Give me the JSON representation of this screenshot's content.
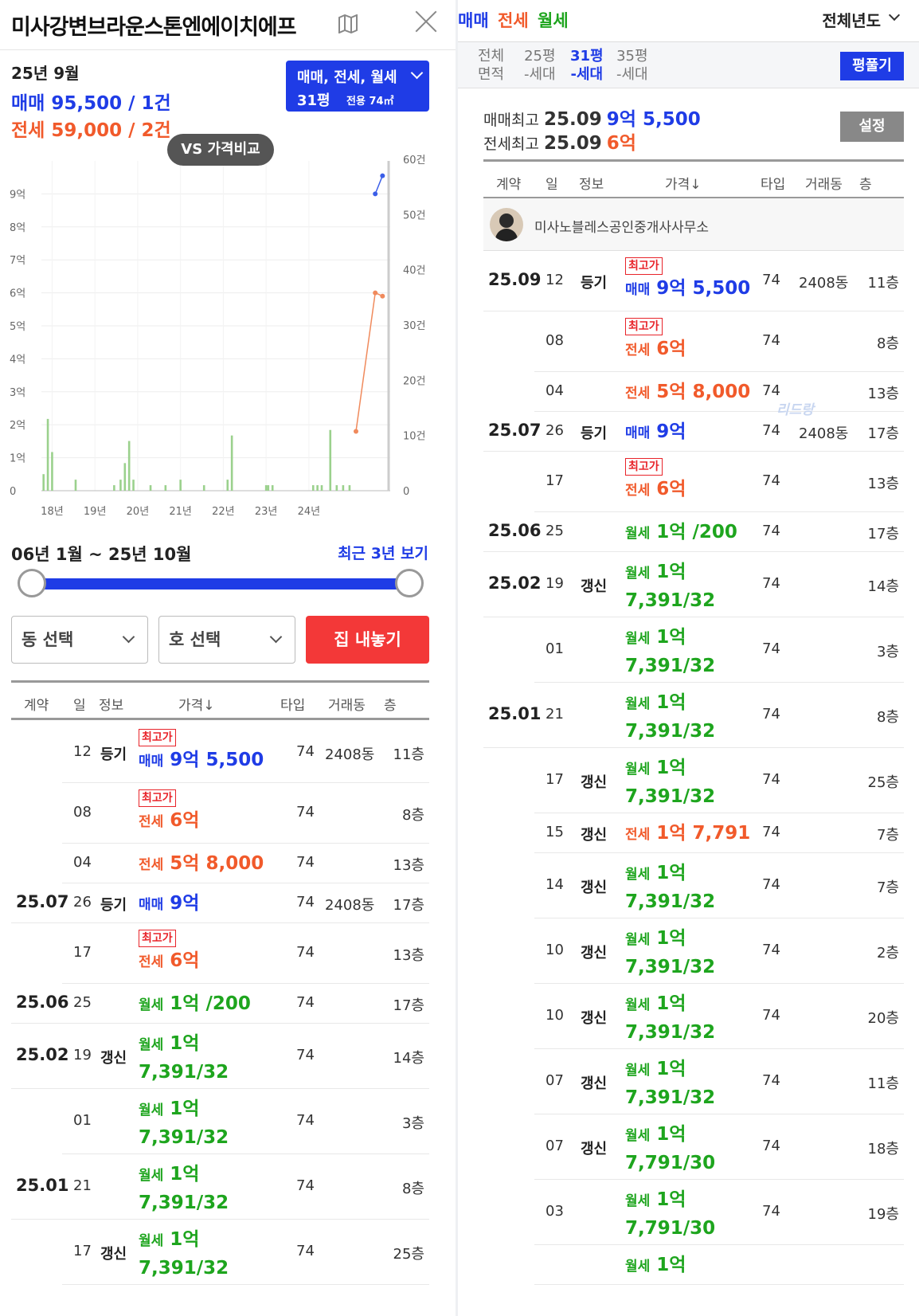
{
  "left": {
    "title": "미사강변브라운스톤엔에이치에프",
    "summary": {
      "month": "25년 9월",
      "sale": "매매 95,500 / 1건",
      "jeonse": "전세 59,000 / 2건"
    },
    "filter": {
      "types": "매매, 전세, 월세",
      "size": "31평",
      "area": "전용 74㎡"
    },
    "vs_button": "VS 가격비교",
    "period": "06년 1월 ~ 25년 10월",
    "recent_link": "최근 3년 보기",
    "dong_select": "동 선택",
    "ho_select": "호 선택",
    "list_button": "집 내놓기"
  },
  "chart_data": {
    "type": "line",
    "y_left_ticks": [
      "0",
      "1억",
      "2억",
      "3억",
      "4억",
      "5억",
      "6억",
      "7억",
      "8억",
      "9억"
    ],
    "y_right_ticks": [
      "0",
      "10건",
      "20건",
      "30건",
      "40건",
      "50건",
      "60건"
    ],
    "x_ticks": [
      "18년",
      "19년",
      "20년",
      "21년",
      "22년",
      "23년",
      "24년"
    ],
    "xlim": [
      2017.75,
      2025.9
    ],
    "ylim_price": [
      0,
      10
    ],
    "ylim_count": [
      0,
      60
    ],
    "series": [
      {
        "type": "line",
        "x": [
          2025.55,
          2025.72
        ],
        "y": [
          9.0,
          9.55
        ],
        "color": "#3a5ee8"
      },
      {
        "type": "line",
        "x": [
          2025.1,
          2025.55,
          2025.72
        ],
        "y": [
          1.8,
          6.0,
          5.9
        ],
        "color": "#f08a5c"
      }
    ],
    "bars": [
      {
        "x": 2017.8,
        "y": 3
      },
      {
        "x": 2017.9,
        "y": 13
      },
      {
        "x": 2018.0,
        "y": 7
      },
      {
        "x": 2018.55,
        "y": 2
      },
      {
        "x": 2019.45,
        "y": 1
      },
      {
        "x": 2019.6,
        "y": 2
      },
      {
        "x": 2019.7,
        "y": 5
      },
      {
        "x": 2019.8,
        "y": 9
      },
      {
        "x": 2019.9,
        "y": 2
      },
      {
        "x": 2020.3,
        "y": 1
      },
      {
        "x": 2020.65,
        "y": 1
      },
      {
        "x": 2021.0,
        "y": 2
      },
      {
        "x": 2021.55,
        "y": 1
      },
      {
        "x": 2022.1,
        "y": 2
      },
      {
        "x": 2022.2,
        "y": 10
      },
      {
        "x": 2023.0,
        "y": 1
      },
      {
        "x": 2023.05,
        "y": 1
      },
      {
        "x": 2023.15,
        "y": 1
      },
      {
        "x": 2024.1,
        "y": 1
      },
      {
        "x": 2024.2,
        "y": 1
      },
      {
        "x": 2024.3,
        "y": 1
      },
      {
        "x": 2024.5,
        "y": 11
      },
      {
        "x": 2024.65,
        "y": 1
      },
      {
        "x": 2024.8,
        "y": 1
      },
      {
        "x": 2024.95,
        "y": 1
      }
    ],
    "bar_color": "#9bd18d"
  },
  "table_header": [
    "계약",
    "일",
    "정보",
    "가격↓",
    "타입",
    "거래동",
    "층"
  ],
  "rows": [
    {
      "month": "",
      "day": "12",
      "info": "등기",
      "badge": "최고가",
      "ptype": "매매",
      "price": "9억 5,500",
      "color": "blue",
      "typ": "74",
      "dong": "2408동",
      "floor": "11층"
    },
    {
      "month": "",
      "day": "08",
      "info": "",
      "badge": "최고가",
      "ptype": "전세",
      "price": "6억",
      "color": "orange",
      "typ": "74",
      "dong": "",
      "floor": "8층"
    },
    {
      "month": "",
      "day": "04",
      "info": "",
      "badge": "",
      "ptype": "전세",
      "price": "5억 8,000",
      "color": "orange",
      "typ": "74",
      "dong": "",
      "floor": "13층"
    },
    {
      "month": "25.07",
      "day": "26",
      "info": "등기",
      "badge": "",
      "ptype": "매매",
      "price": "9억",
      "color": "blue",
      "typ": "74",
      "dong": "2408동",
      "floor": "17층"
    },
    {
      "month": "",
      "day": "17",
      "info": "",
      "badge": "최고가",
      "ptype": "전세",
      "price": "6억",
      "color": "orange",
      "typ": "74",
      "dong": "",
      "floor": "13층"
    },
    {
      "month": "25.06",
      "day": "25",
      "info": "",
      "badge": "",
      "ptype": "월세",
      "price": "1억 /200",
      "color": "green",
      "typ": "74",
      "dong": "",
      "floor": "17층"
    },
    {
      "month": "25.02",
      "day": "19",
      "info": "갱신",
      "badge": "",
      "ptype": "월세",
      "price": "1억",
      "price2": "7,391/32",
      "color": "green",
      "typ": "74",
      "dong": "",
      "floor": "14층"
    },
    {
      "month": "",
      "day": "01",
      "info": "",
      "badge": "",
      "ptype": "월세",
      "price": "1억",
      "price2": "7,391/32",
      "color": "green",
      "typ": "74",
      "dong": "",
      "floor": "3층"
    },
    {
      "month": "25.01",
      "day": "21",
      "info": "",
      "badge": "",
      "ptype": "월세",
      "price": "1억",
      "price2": "7,391/32",
      "color": "green",
      "typ": "74",
      "dong": "",
      "floor": "8층"
    },
    {
      "month": "",
      "day": "17",
      "info": "갱신",
      "badge": "",
      "ptype": "월세",
      "price": "1억",
      "price2": "7,391/32",
      "color": "green",
      "typ": "74",
      "dong": "",
      "floor": "25층"
    }
  ],
  "right": {
    "tabs": [
      "매매",
      "전세",
      "월세"
    ],
    "year_select": "전체년도",
    "areas": [
      {
        "top": "전체",
        "bottom": "면적"
      },
      {
        "top": "25평",
        "bottom": "-세대"
      },
      {
        "top": "31평",
        "bottom": "-세대"
      },
      {
        "top": "35평",
        "bottom": "-세대"
      }
    ],
    "pyeong_button": "평풀기",
    "sale_high_label": "매매최고",
    "sale_high_date": "25.09",
    "sale_high_value": "9억 5,500",
    "jeonse_high_label": "전세최고",
    "jeonse_high_date": "25.09",
    "jeonse_high_value": "6억",
    "settings_button": "설정",
    "agent_name": "미사노블레스공인중개사사무소",
    "watermark": "리드랑"
  },
  "right_rows": [
    {
      "month": "25.09",
      "day": "12",
      "info": "등기",
      "badge": "최고가",
      "ptype": "매매",
      "price": "9억 5,500",
      "color": "blue",
      "typ": "74",
      "dong": "2408동",
      "floor": "11층"
    },
    {
      "month": "",
      "day": "08",
      "info": "",
      "badge": "최고가",
      "ptype": "전세",
      "price": "6억",
      "color": "orange",
      "typ": "74",
      "dong": "",
      "floor": "8층"
    },
    {
      "month": "",
      "day": "04",
      "info": "",
      "badge": "",
      "ptype": "전세",
      "price": "5억 8,000",
      "color": "orange",
      "typ": "74",
      "dong": "",
      "floor": "13층"
    },
    {
      "month": "25.07",
      "day": "26",
      "info": "등기",
      "badge": "",
      "ptype": "매매",
      "price": "9억",
      "color": "blue",
      "typ": "74",
      "dong": "2408동",
      "floor": "17층"
    },
    {
      "month": "",
      "day": "17",
      "info": "",
      "badge": "최고가",
      "ptype": "전세",
      "price": "6억",
      "color": "orange",
      "typ": "74",
      "dong": "",
      "floor": "13층"
    },
    {
      "month": "25.06",
      "day": "25",
      "info": "",
      "badge": "",
      "ptype": "월세",
      "price": "1억 /200",
      "color": "green",
      "typ": "74",
      "dong": "",
      "floor": "17층"
    },
    {
      "month": "25.02",
      "day": "19",
      "info": "갱신",
      "badge": "",
      "ptype": "월세",
      "price": "1억",
      "price2": "7,391/32",
      "color": "green",
      "typ": "74",
      "dong": "",
      "floor": "14층"
    },
    {
      "month": "",
      "day": "01",
      "info": "",
      "badge": "",
      "ptype": "월세",
      "price": "1억",
      "price2": "7,391/32",
      "color": "green",
      "typ": "74",
      "dong": "",
      "floor": "3층"
    },
    {
      "month": "25.01",
      "day": "21",
      "info": "",
      "badge": "",
      "ptype": "월세",
      "price": "1억",
      "price2": "7,391/32",
      "color": "green",
      "typ": "74",
      "dong": "",
      "floor": "8층"
    },
    {
      "month": "",
      "day": "17",
      "info": "갱신",
      "badge": "",
      "ptype": "월세",
      "price": "1억",
      "price2": "7,391/32",
      "color": "green",
      "typ": "74",
      "dong": "",
      "floor": "25층"
    },
    {
      "month": "",
      "day": "15",
      "info": "갱신",
      "badge": "",
      "ptype": "전세",
      "price": "1억 7,791",
      "color": "orange",
      "typ": "74",
      "dong": "",
      "floor": "7층"
    },
    {
      "month": "",
      "day": "14",
      "info": "갱신",
      "badge": "",
      "ptype": "월세",
      "price": "1억",
      "price2": "7,391/32",
      "color": "green",
      "typ": "74",
      "dong": "",
      "floor": "7층"
    },
    {
      "month": "",
      "day": "10",
      "info": "갱신",
      "badge": "",
      "ptype": "월세",
      "price": "1억",
      "price2": "7,391/32",
      "color": "green",
      "typ": "74",
      "dong": "",
      "floor": "2층"
    },
    {
      "month": "",
      "day": "10",
      "info": "갱신",
      "badge": "",
      "ptype": "월세",
      "price": "1억",
      "price2": "7,391/32",
      "color": "green",
      "typ": "74",
      "dong": "",
      "floor": "20층"
    },
    {
      "month": "",
      "day": "07",
      "info": "갱신",
      "badge": "",
      "ptype": "월세",
      "price": "1억",
      "price2": "7,391/32",
      "color": "green",
      "typ": "74",
      "dong": "",
      "floor": "11층"
    },
    {
      "month": "",
      "day": "07",
      "info": "갱신",
      "badge": "",
      "ptype": "월세",
      "price": "1억",
      "price2": "7,791/30",
      "color": "green",
      "typ": "74",
      "dong": "",
      "floor": "18층"
    },
    {
      "month": "",
      "day": "03",
      "info": "",
      "badge": "",
      "ptype": "월세",
      "price": "1억",
      "price2": "7,791/30",
      "color": "green",
      "typ": "74",
      "dong": "",
      "floor": "19층"
    },
    {
      "month": "",
      "day": "",
      "info": "",
      "badge": "",
      "ptype": "월세",
      "price": "1억",
      "color": "green",
      "typ": "",
      "dong": "",
      "floor": ""
    }
  ]
}
